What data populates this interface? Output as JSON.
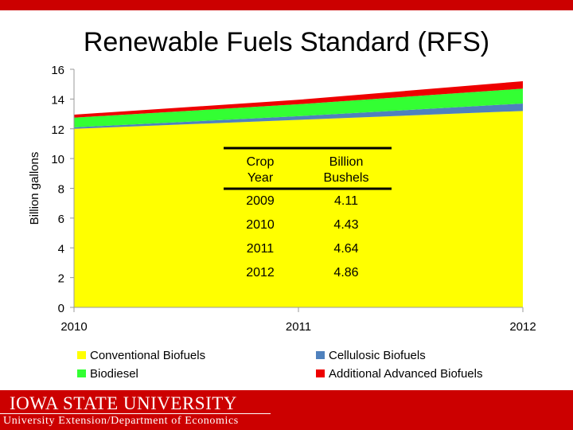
{
  "title": "Renewable Fuels Standard (RFS)",
  "chart_data": {
    "type": "area",
    "stacked": true,
    "x": [
      2010,
      2011,
      2012
    ],
    "xlim": [
      2010,
      2012
    ],
    "ylim": [
      0,
      16
    ],
    "yticks": [
      0,
      2,
      4,
      6,
      8,
      10,
      12,
      14,
      16
    ],
    "xticks": [
      "2010",
      "2011",
      "2012"
    ],
    "ylabel": "Billion gallons",
    "legend_position": "bottom",
    "series": [
      {
        "name": "Conventional Biofuels",
        "color": "#ffff00",
        "values": [
          12.0,
          12.6,
          13.2
        ]
      },
      {
        "name": "Cellulosic Biofuels",
        "color": "#4f81bd",
        "values": [
          0.1,
          0.25,
          0.5
        ]
      },
      {
        "name": "Biodiesel",
        "color": "#33ff33",
        "values": [
          0.65,
          0.8,
          1.0
        ]
      },
      {
        "name": "Additional Advanced Biofuels",
        "color": "#ee0000",
        "values": [
          0.2,
          0.3,
          0.5
        ]
      }
    ],
    "legend_order": [
      "Conventional Biofuels",
      "Cellulosic Biofuels",
      "Biodiesel",
      "Additional Advanced Biofuels"
    ]
  },
  "table": {
    "headers": [
      "Crop Year",
      "Billion Bushels"
    ],
    "rows": [
      [
        "2009",
        "4.11"
      ],
      [
        "2010",
        "4.43"
      ],
      [
        "2011",
        "4.64"
      ],
      [
        "2012",
        "4.86"
      ]
    ]
  },
  "footer": {
    "logo": "IOWA STATE UNIVERSITY",
    "subtitle": "University Extension/Department of Economics",
    "color": "#cc0000"
  }
}
